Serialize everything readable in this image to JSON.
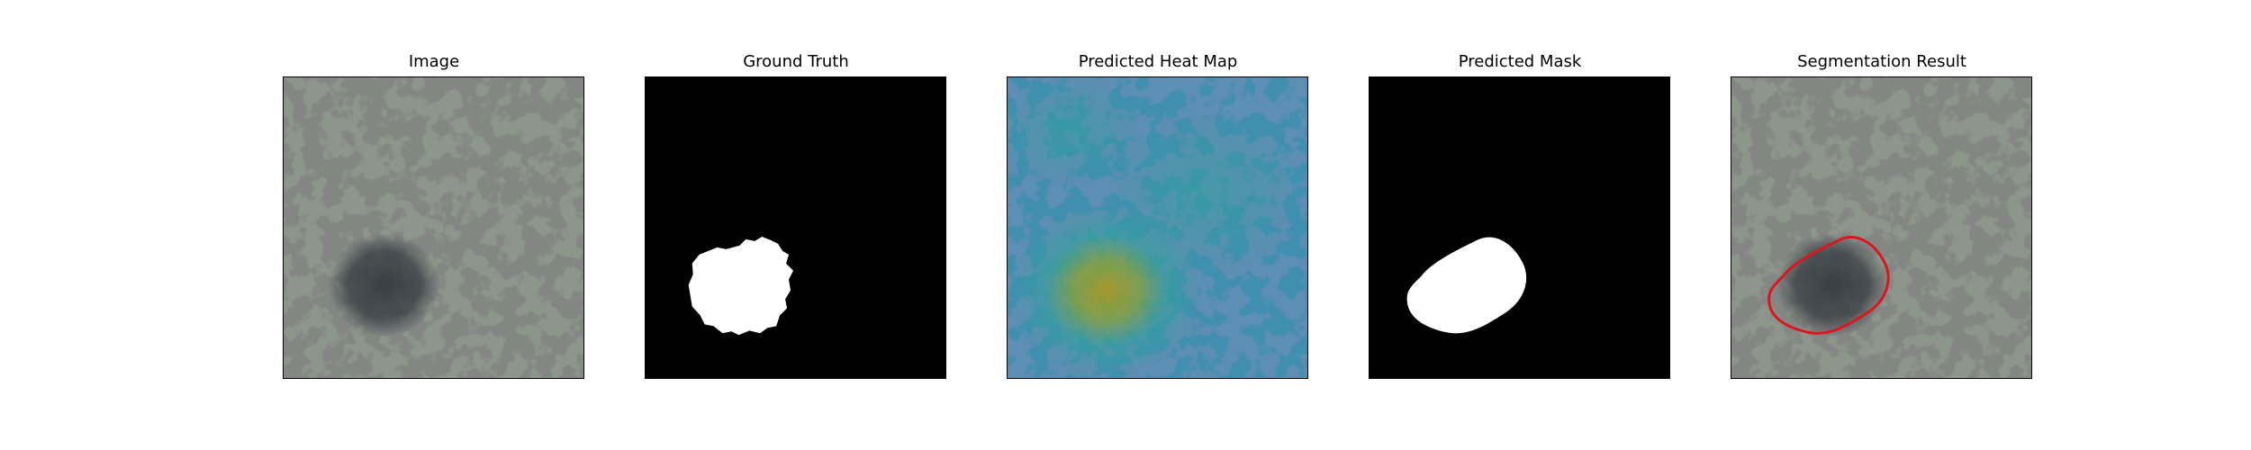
{
  "figure": {
    "panels": [
      {
        "title": "Image"
      },
      {
        "title": "Ground Truth"
      },
      {
        "title": "Predicted Heat Map"
      },
      {
        "title": "Predicted Mask"
      },
      {
        "title": "Segmentation Result"
      }
    ],
    "colors": {
      "texture_light": "#8d968b",
      "texture_dark": "#3b3c3a",
      "mask_bg": "#000000",
      "mask_fg": "#ffffff",
      "contour": "#e0141e",
      "heat_cold": "#2f6fa8",
      "heat_mid": "#2fa39a",
      "heat_hot": "#b39a14"
    }
  }
}
